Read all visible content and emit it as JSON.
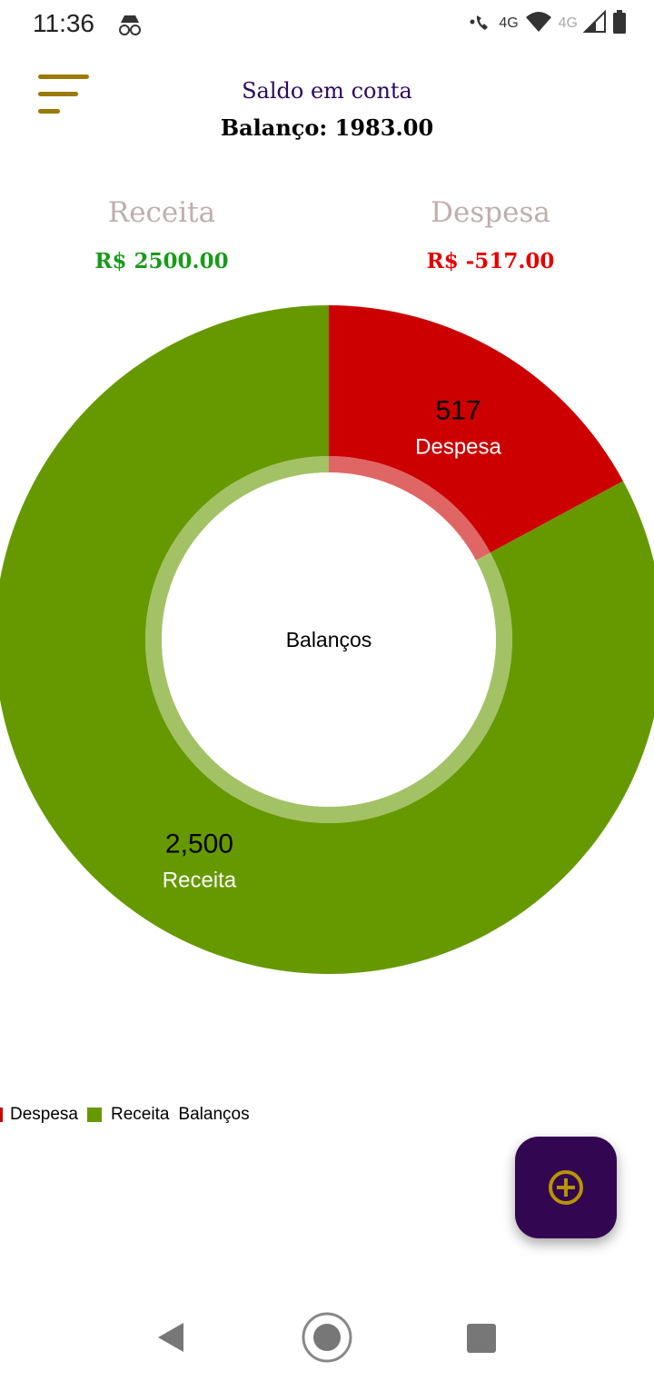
{
  "status_bar": {
    "time": "11:36",
    "net_label_1": "4G",
    "net_label_2": "4G",
    "icons": [
      "incognito-icon",
      "wifi-call-icon",
      "wifi-icon",
      "signal-icon",
      "battery-icon"
    ]
  },
  "header": {
    "title": "Saldo em conta",
    "balance_text": "Balanço: 1983.00"
  },
  "summary": {
    "receita_label": "Receita",
    "receita_value": "R$ 2500.00",
    "despesa_label": "Despesa",
    "despesa_value": "R$ -517.00"
  },
  "colors": {
    "receita": "#669900",
    "despesa": "#cc0000",
    "receita_text": "#1a9a1a",
    "despesa_text": "#e60000",
    "accent": "#330652",
    "menu_icon": "#9a7a00"
  },
  "chart_data": {
    "type": "pie",
    "donut": true,
    "center_text": "Balanços",
    "slices": [
      {
        "label": "Despesa",
        "value": 517,
        "value_label": "517",
        "color": "#cc0000"
      },
      {
        "label": "Receita",
        "value": 2500,
        "value_label": "2,500",
        "color": "#669900"
      }
    ],
    "legend": [
      "Despesa",
      "Receita",
      "Balanços"
    ],
    "legend_position": "bottom-left"
  },
  "fab": {
    "icon": "add-circle-icon"
  },
  "nav": {
    "icons": [
      "back-icon",
      "home-icon",
      "recents-icon"
    ]
  }
}
